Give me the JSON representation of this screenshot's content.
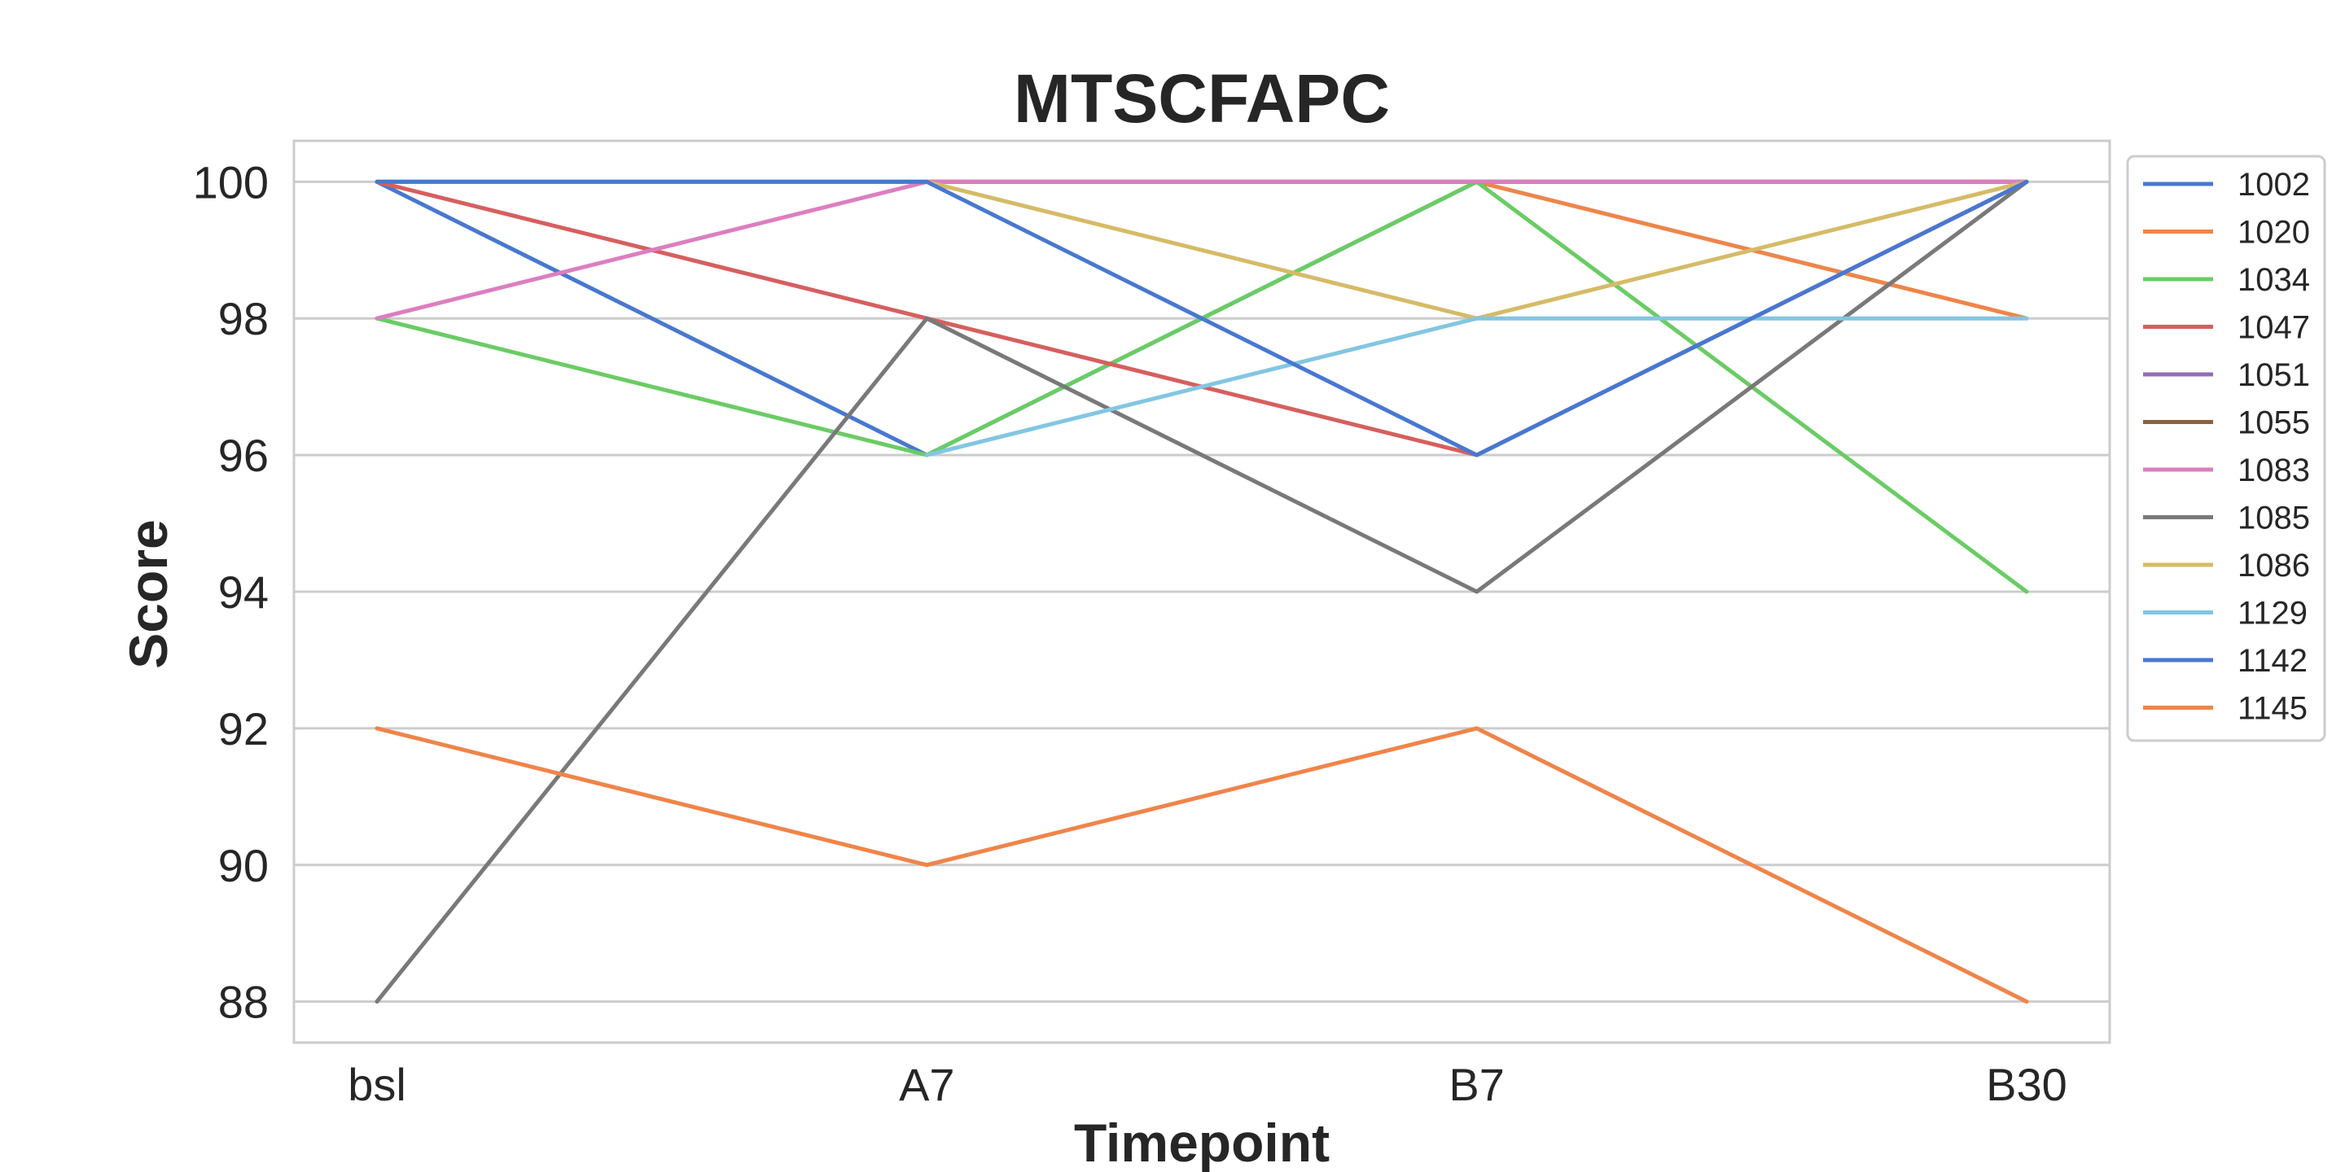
{
  "chart_data": {
    "type": "line",
    "title": "MTSCFAPC",
    "xlabel": "Timepoint",
    "ylabel": "Score",
    "categories": [
      "bsl",
      "A7",
      "B7",
      "B30"
    ],
    "ylim": [
      87.4,
      100.6
    ],
    "yticks": [
      88,
      90,
      92,
      94,
      96,
      98,
      100
    ],
    "grid": "horizontal",
    "legend_position": "outside-right",
    "series": [
      {
        "name": "1002",
        "color": "#4878d0",
        "values": [
          100,
          96,
          100,
          100
        ]
      },
      {
        "name": "1020",
        "color": "#ee854a",
        "values": [
          100,
          100,
          100,
          98
        ]
      },
      {
        "name": "1034",
        "color": "#6acc64",
        "values": [
          98,
          96,
          100,
          94
        ]
      },
      {
        "name": "1047",
        "color": "#d65f5f",
        "values": [
          100,
          98,
          96,
          100
        ]
      },
      {
        "name": "1051",
        "color": "#956cb4",
        "values": [
          100,
          100,
          100,
          100
        ]
      },
      {
        "name": "1055",
        "color": "#8c613c",
        "values": [
          100,
          100,
          100,
          100
        ]
      },
      {
        "name": "1083",
        "color": "#dc7ec0",
        "values": [
          98,
          100,
          100,
          100
        ]
      },
      {
        "name": "1085",
        "color": "#797979",
        "values": [
          88,
          98,
          94,
          100
        ]
      },
      {
        "name": "1086",
        "color": "#d5bb67",
        "values": [
          100,
          100,
          98,
          100
        ]
      },
      {
        "name": "1129",
        "color": "#82c6e2",
        "values": [
          null,
          96,
          98,
          98
        ]
      },
      {
        "name": "1142",
        "color": "#4878d0",
        "values": [
          100,
          100,
          96,
          100
        ]
      },
      {
        "name": "1145",
        "color": "#ee854a",
        "values": [
          92,
          90,
          92,
          88
        ]
      }
    ]
  }
}
